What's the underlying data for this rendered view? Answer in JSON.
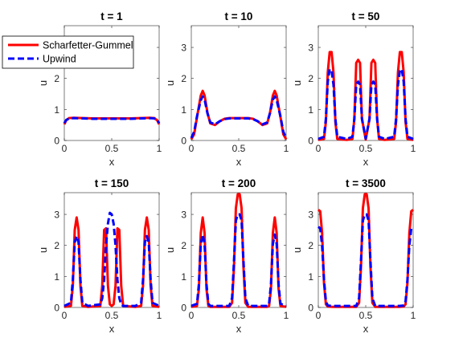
{
  "chart_data": [
    {
      "type": "line",
      "title": "t = 1",
      "xlabel": "x",
      "ylabel": "u",
      "xlim": [
        0,
        1
      ],
      "ylim": [
        0,
        3.7
      ],
      "xticks": [
        "0",
        "0.5",
        "1"
      ],
      "yticks": [
        "0",
        "1",
        "2",
        "3"
      ],
      "x": [
        0,
        0.02,
        0.05,
        0.1,
        0.2,
        0.3,
        0.4,
        0.5,
        0.6,
        0.7,
        0.8,
        0.9,
        0.95,
        0.98,
        1
      ],
      "series": [
        {
          "name": "Scharfetter-Gummel",
          "color": "#ff0000",
          "style": "solid",
          "values": [
            0.52,
            0.65,
            0.72,
            0.73,
            0.72,
            0.71,
            0.71,
            0.71,
            0.71,
            0.71,
            0.72,
            0.73,
            0.72,
            0.65,
            0.52
          ]
        },
        {
          "name": "Upwind",
          "color": "#0000ff",
          "style": "dashed",
          "values": [
            0.56,
            0.66,
            0.71,
            0.72,
            0.71,
            0.7,
            0.7,
            0.7,
            0.7,
            0.7,
            0.71,
            0.72,
            0.71,
            0.66,
            0.56
          ]
        }
      ]
    },
    {
      "type": "line",
      "title": "t = 10",
      "xlabel": "x",
      "ylabel": "u",
      "xlim": [
        0,
        1
      ],
      "ylim": [
        0,
        3.7
      ],
      "xticks": [
        "0",
        "0.5",
        "1"
      ],
      "yticks": [
        "0",
        "1",
        "2",
        "3"
      ],
      "x": [
        0,
        0.03,
        0.06,
        0.1,
        0.12,
        0.14,
        0.17,
        0.2,
        0.25,
        0.3,
        0.35,
        0.4,
        0.45,
        0.5,
        0.55,
        0.6,
        0.65,
        0.7,
        0.75,
        0.8,
        0.83,
        0.86,
        0.88,
        0.9,
        0.94,
        0.97,
        1
      ],
      "series": [
        {
          "name": "Scharfetter-Gummel",
          "color": "#ff0000",
          "style": "solid",
          "values": [
            0.04,
            0.2,
            0.75,
            1.45,
            1.6,
            1.45,
            0.9,
            0.55,
            0.5,
            0.62,
            0.7,
            0.72,
            0.72,
            0.72,
            0.72,
            0.72,
            0.7,
            0.62,
            0.5,
            0.55,
            0.9,
            1.45,
            1.6,
            1.45,
            0.75,
            0.2,
            0.04
          ]
        },
        {
          "name": "Upwind",
          "color": "#0000ff",
          "style": "dashed",
          "values": [
            0.08,
            0.28,
            0.78,
            1.3,
            1.42,
            1.32,
            0.88,
            0.58,
            0.52,
            0.62,
            0.69,
            0.71,
            0.71,
            0.71,
            0.71,
            0.71,
            0.69,
            0.62,
            0.52,
            0.58,
            0.88,
            1.32,
            1.42,
            1.3,
            0.78,
            0.28,
            0.08
          ]
        }
      ]
    },
    {
      "type": "line",
      "title": "t = 50",
      "xlabel": "x",
      "ylabel": "u",
      "xlim": [
        0,
        1
      ],
      "ylim": [
        0,
        3.7
      ],
      "xticks": [
        "0",
        "0.5",
        "1"
      ],
      "yticks": [
        "0",
        "1",
        "2",
        "3"
      ],
      "x": [
        0,
        0.06,
        0.08,
        0.1,
        0.12,
        0.14,
        0.16,
        0.18,
        0.2,
        0.3,
        0.36,
        0.38,
        0.4,
        0.42,
        0.44,
        0.46,
        0.5,
        0.54,
        0.56,
        0.58,
        0.6,
        0.62,
        0.64,
        0.7,
        0.8,
        0.82,
        0.84,
        0.86,
        0.88,
        0.9,
        0.92,
        0.94,
        1
      ],
      "series": [
        {
          "name": "Scharfetter-Gummel",
          "color": "#ff0000",
          "style": "solid",
          "values": [
            0.02,
            0.05,
            0.6,
            2.2,
            2.85,
            2.85,
            2.2,
            0.6,
            0.05,
            0.02,
            0.05,
            0.7,
            2.5,
            2.6,
            2.5,
            0.7,
            0.03,
            0.7,
            2.5,
            2.6,
            2.5,
            0.7,
            0.05,
            0.02,
            0.05,
            0.6,
            2.2,
            2.85,
            2.85,
            2.2,
            0.6,
            0.05,
            0.02
          ]
        },
        {
          "name": "Upwind",
          "color": "#0000ff",
          "style": "dashed",
          "values": [
            0.05,
            0.12,
            0.7,
            1.9,
            2.3,
            2.25,
            1.8,
            0.7,
            0.12,
            0.05,
            0.12,
            0.7,
            1.8,
            1.9,
            1.8,
            0.7,
            0.06,
            0.7,
            1.8,
            1.9,
            1.8,
            0.7,
            0.12,
            0.05,
            0.12,
            0.7,
            1.8,
            2.25,
            2.3,
            1.9,
            0.7,
            0.12,
            0.05
          ]
        }
      ]
    },
    {
      "type": "line",
      "title": "t = 150",
      "xlabel": "x",
      "ylabel": "u",
      "xlim": [
        0,
        1
      ],
      "ylim": [
        0,
        3.7
      ],
      "xticks": [
        "0",
        "0.5",
        "1"
      ],
      "yticks": [
        "0",
        "1",
        "2",
        "3"
      ],
      "x": [
        0,
        0.07,
        0.09,
        0.11,
        0.13,
        0.15,
        0.17,
        0.19,
        0.25,
        0.38,
        0.4,
        0.42,
        0.44,
        0.46,
        0.48,
        0.5,
        0.52,
        0.54,
        0.56,
        0.58,
        0.6,
        0.62,
        0.75,
        0.81,
        0.83,
        0.85,
        0.87,
        0.89,
        0.91,
        0.93,
        1
      ],
      "series": [
        {
          "name": "Scharfetter-Gummel",
          "color": "#ff0000",
          "style": "solid",
          "values": [
            0.02,
            0.05,
            0.7,
            2.5,
            2.9,
            2.5,
            0.7,
            0.05,
            0.02,
            0.05,
            0.7,
            2.5,
            2.55,
            0.7,
            0.1,
            0.05,
            0.1,
            0.7,
            2.55,
            2.5,
            0.7,
            0.05,
            0.02,
            0.05,
            0.7,
            2.5,
            2.9,
            2.5,
            0.7,
            0.05,
            0.02
          ]
        },
        {
          "name": "Upwind",
          "color": "#0000ff",
          "style": "dashed",
          "values": [
            0.05,
            0.15,
            0.9,
            2.1,
            2.3,
            2.1,
            0.9,
            0.15,
            0.05,
            0.1,
            0.3,
            0.9,
            2.0,
            2.7,
            3.05,
            3.0,
            2.7,
            2.0,
            0.9,
            0.3,
            0.1,
            0.05,
            0.05,
            0.15,
            0.9,
            2.1,
            2.3,
            2.1,
            0.9,
            0.15,
            0.05
          ]
        }
      ]
    },
    {
      "type": "line",
      "title": "t = 200",
      "xlabel": "x",
      "ylabel": "u",
      "xlim": [
        0,
        1
      ],
      "ylim": [
        0,
        3.7
      ],
      "xticks": [
        "0",
        "0.5",
        "1"
      ],
      "yticks": [
        "0",
        "1",
        "2",
        "3"
      ],
      "x": [
        0,
        0.06,
        0.08,
        0.1,
        0.12,
        0.14,
        0.16,
        0.18,
        0.2,
        0.4,
        0.43,
        0.45,
        0.47,
        0.49,
        0.51,
        0.53,
        0.55,
        0.57,
        0.6,
        0.8,
        0.82,
        0.84,
        0.86,
        0.88,
        0.9,
        0.92,
        0.94,
        1
      ],
      "series": [
        {
          "name": "Scharfetter-Gummel",
          "color": "#ff0000",
          "style": "solid",
          "values": [
            0.02,
            0.05,
            0.6,
            2.4,
            2.9,
            2.4,
            0.6,
            0.05,
            0.02,
            0.02,
            0.15,
            1.3,
            3.2,
            3.65,
            3.65,
            3.2,
            1.3,
            0.15,
            0.02,
            0.02,
            0.05,
            0.6,
            2.4,
            2.9,
            2.4,
            0.6,
            0.05,
            0.02
          ]
        },
        {
          "name": "Upwind",
          "color": "#0000ff",
          "style": "dashed",
          "values": [
            0.05,
            0.12,
            0.75,
            2.05,
            2.35,
            2.05,
            0.75,
            0.12,
            0.05,
            0.05,
            0.3,
            1.5,
            2.8,
            3.0,
            3.0,
            2.8,
            1.5,
            0.3,
            0.05,
            0.05,
            0.12,
            0.75,
            2.05,
            2.35,
            2.05,
            0.75,
            0.12,
            0.05
          ]
        }
      ]
    },
    {
      "type": "line",
      "title": "t = 3500",
      "xlabel": "x",
      "ylabel": "u",
      "xlim": [
        0,
        1
      ],
      "ylim": [
        0,
        3.7
      ],
      "xticks": [
        "0",
        "0.5",
        "1"
      ],
      "yticks": [
        "0",
        "1",
        "2",
        "3"
      ],
      "x": [
        0,
        0.02,
        0.04,
        0.06,
        0.08,
        0.1,
        0.15,
        0.4,
        0.43,
        0.45,
        0.47,
        0.49,
        0.51,
        0.53,
        0.55,
        0.57,
        0.6,
        0.85,
        0.9,
        0.92,
        0.94,
        0.96,
        0.98,
        1
      ],
      "series": [
        {
          "name": "Scharfetter-Gummel",
          "color": "#ff0000",
          "style": "solid",
          "values": [
            3.15,
            3.1,
            2.4,
            0.8,
            0.1,
            0.03,
            0.02,
            0.02,
            0.15,
            1.3,
            3.2,
            3.65,
            3.65,
            3.2,
            1.3,
            0.15,
            0.02,
            0.02,
            0.03,
            0.1,
            0.8,
            2.4,
            3.1,
            3.15
          ]
        },
        {
          "name": "Upwind",
          "color": "#0000ff",
          "style": "dashed",
          "values": [
            2.6,
            2.55,
            2.0,
            0.9,
            0.2,
            0.06,
            0.05,
            0.05,
            0.3,
            1.5,
            2.8,
            3.0,
            3.0,
            2.8,
            1.5,
            0.3,
            0.05,
            0.05,
            0.06,
            0.2,
            0.9,
            2.0,
            2.55,
            2.6
          ]
        }
      ]
    }
  ],
  "legend": {
    "entries": [
      {
        "label": "Scharfetter-Gummel",
        "color": "#ff0000",
        "style": "solid"
      },
      {
        "label": "Upwind",
        "color": "#0000ff",
        "style": "dashed"
      }
    ]
  }
}
